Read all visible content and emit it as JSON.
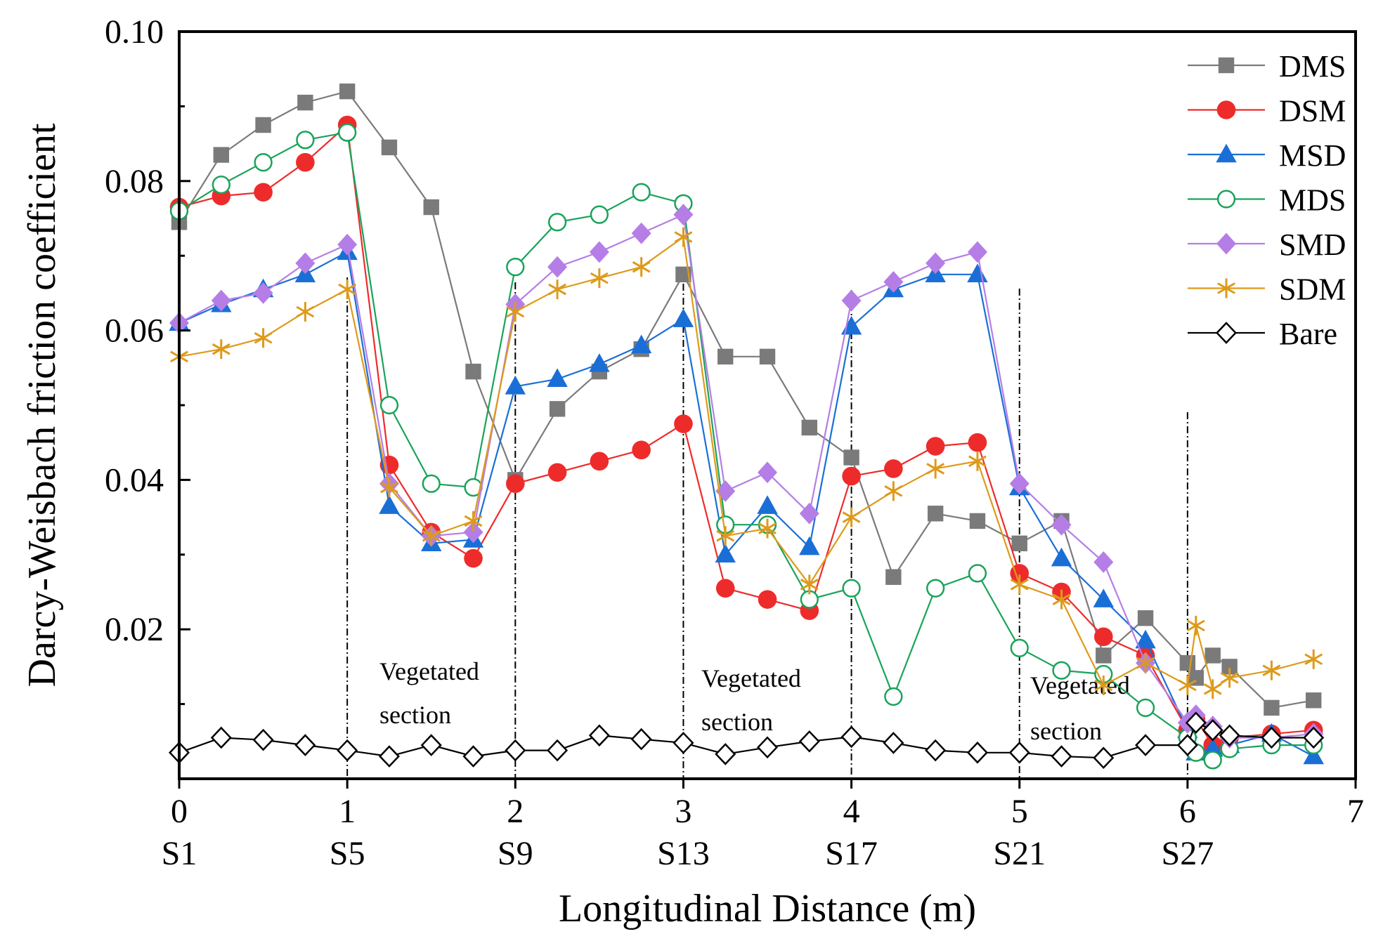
{
  "chart_data": {
    "type": "line",
    "xlabel": "Longitudinal Distance (m)",
    "ylabel": "Darcy-Weisbach friction coefficient",
    "xlim": [
      0,
      7
    ],
    "ylim": [
      0,
      0.1
    ],
    "x_ticks": [
      "0",
      "1",
      "2",
      "3",
      "4",
      "5",
      "6",
      "7"
    ],
    "x_sublabels": [
      "S1",
      "S5",
      "S9",
      "S13",
      "S17",
      "S21",
      "S27"
    ],
    "y_ticks": [
      "0.02",
      "0.04",
      "0.06",
      "0.08",
      "0.10"
    ],
    "legend_position": "top-right",
    "section_dividers": [
      1,
      2,
      3,
      4,
      5,
      6
    ],
    "annotations": [
      {
        "line1": "Vegetated",
        "line2": "section",
        "x": 1.5
      },
      {
        "line1": "Vegetated",
        "line2": "section",
        "x": 3.5
      },
      {
        "line1": "Vegetated",
        "line2": "section",
        "x": 5.5
      }
    ],
    "series": [
      {
        "name": "DMS",
        "color": "#7a7a7a",
        "marker": "square",
        "points": [
          [
            0,
            0.0745
          ],
          [
            0.25,
            0.0835
          ],
          [
            0.5,
            0.0875
          ],
          [
            0.75,
            0.0905
          ],
          [
            1,
            0.092
          ],
          [
            1.25,
            0.0845
          ],
          [
            1.5,
            0.0765
          ],
          [
            1.75,
            0.0545
          ],
          [
            2,
            0.04
          ],
          [
            2.25,
            0.0495
          ],
          [
            2.5,
            0.0545
          ],
          [
            2.75,
            0.0575
          ],
          [
            3,
            0.0675
          ],
          [
            3.25,
            0.0565
          ],
          [
            3.5,
            0.0565
          ],
          [
            3.75,
            0.047
          ],
          [
            4,
            0.043
          ],
          [
            4.25,
            0.027
          ],
          [
            4.5,
            0.0355
          ],
          [
            4.75,
            0.0345
          ],
          [
            5,
            0.0315
          ],
          [
            5.25,
            0.0345
          ],
          [
            5.5,
            0.0165
          ],
          [
            5.75,
            0.0215
          ],
          [
            6,
            0.0155
          ],
          [
            6.05,
            0.0135
          ],
          [
            6.15,
            0.0165
          ],
          [
            6.25,
            0.015
          ],
          [
            6.5,
            0.0095
          ],
          [
            6.75,
            0.0105
          ]
        ]
      },
      {
        "name": "DSM",
        "color": "#ee2b2b",
        "marker": "circle-filled",
        "points": [
          [
            0,
            0.0765
          ],
          [
            0.25,
            0.078
          ],
          [
            0.5,
            0.0785
          ],
          [
            0.75,
            0.0825
          ],
          [
            1,
            0.0875
          ],
          [
            1.25,
            0.042
          ],
          [
            1.5,
            0.033
          ],
          [
            1.75,
            0.0295
          ],
          [
            2,
            0.0395
          ],
          [
            2.25,
            0.041
          ],
          [
            2.5,
            0.0425
          ],
          [
            2.75,
            0.044
          ],
          [
            3,
            0.0475
          ],
          [
            3.25,
            0.0255
          ],
          [
            3.5,
            0.024
          ],
          [
            3.75,
            0.0225
          ],
          [
            4,
            0.0405
          ],
          [
            4.25,
            0.0415
          ],
          [
            4.5,
            0.0445
          ],
          [
            4.75,
            0.045
          ],
          [
            5,
            0.0275
          ],
          [
            5.25,
            0.025
          ],
          [
            5.5,
            0.019
          ],
          [
            5.75,
            0.0165
          ],
          [
            6,
            0.0065
          ],
          [
            6.05,
            0.008
          ],
          [
            6.15,
            0.0045
          ],
          [
            6.25,
            0.0055
          ],
          [
            6.5,
            0.006
          ],
          [
            6.75,
            0.0065
          ]
        ]
      },
      {
        "name": "MSD",
        "color": "#1a6fd6",
        "marker": "triangle",
        "points": [
          [
            0,
            0.061
          ],
          [
            0.25,
            0.0635
          ],
          [
            0.5,
            0.0655
          ],
          [
            0.75,
            0.0675
          ],
          [
            1,
            0.0705
          ],
          [
            1.25,
            0.0365
          ],
          [
            1.5,
            0.0315
          ],
          [
            1.75,
            0.032
          ],
          [
            2,
            0.0525
          ],
          [
            2.25,
            0.0535
          ],
          [
            2.5,
            0.0555
          ],
          [
            2.75,
            0.058
          ],
          [
            3,
            0.0615
          ],
          [
            3.25,
            0.03
          ],
          [
            3.5,
            0.0365
          ],
          [
            3.75,
            0.031
          ],
          [
            4,
            0.0605
          ],
          [
            4.25,
            0.0655
          ],
          [
            4.5,
            0.0675
          ],
          [
            4.75,
            0.0675
          ],
          [
            5,
            0.039
          ],
          [
            5.25,
            0.0295
          ],
          [
            5.5,
            0.024
          ],
          [
            5.75,
            0.0185
          ],
          [
            6,
            0.0065
          ],
          [
            6.05,
            0.0035
          ],
          [
            6.15,
            0.004
          ],
          [
            6.25,
            0.0045
          ],
          [
            6.5,
            0.006
          ],
          [
            6.75,
            0.003
          ]
        ]
      },
      {
        "name": "MDS",
        "color": "#1aa35a",
        "marker": "circle-open",
        "points": [
          [
            0,
            0.076
          ],
          [
            0.25,
            0.0795
          ],
          [
            0.5,
            0.0825
          ],
          [
            0.75,
            0.0855
          ],
          [
            1,
            0.0865
          ],
          [
            1.25,
            0.05
          ],
          [
            1.5,
            0.0395
          ],
          [
            1.75,
            0.039
          ],
          [
            2,
            0.0685
          ],
          [
            2.25,
            0.0745
          ],
          [
            2.5,
            0.0755
          ],
          [
            2.75,
            0.0785
          ],
          [
            3,
            0.077
          ],
          [
            3.25,
            0.034
          ],
          [
            3.5,
            0.034
          ],
          [
            3.75,
            0.024
          ],
          [
            4,
            0.0255
          ],
          [
            4.25,
            0.011
          ],
          [
            4.5,
            0.0255
          ],
          [
            4.75,
            0.0275
          ],
          [
            5,
            0.0175
          ],
          [
            5.25,
            0.0145
          ],
          [
            5.5,
            0.014
          ],
          [
            5.75,
            0.0095
          ],
          [
            6,
            0.0055
          ],
          [
            6.05,
            0.0035
          ],
          [
            6.15,
            0.0025
          ],
          [
            6.25,
            0.004
          ],
          [
            6.5,
            0.0045
          ],
          [
            6.75,
            0.0045
          ]
        ]
      },
      {
        "name": "SMD",
        "color": "#b57ee6",
        "marker": "diamond-filled",
        "points": [
          [
            0,
            0.061
          ],
          [
            0.25,
            0.064
          ],
          [
            0.5,
            0.065
          ],
          [
            0.75,
            0.069
          ],
          [
            1,
            0.0715
          ],
          [
            1.25,
            0.0395
          ],
          [
            1.5,
            0.0325
          ],
          [
            1.75,
            0.033
          ],
          [
            2,
            0.0635
          ],
          [
            2.25,
            0.0685
          ],
          [
            2.5,
            0.0705
          ],
          [
            2.75,
            0.073
          ],
          [
            3,
            0.0755
          ],
          [
            3.25,
            0.0385
          ],
          [
            3.5,
            0.041
          ],
          [
            3.75,
            0.0355
          ],
          [
            4,
            0.064
          ],
          [
            4.25,
            0.0665
          ],
          [
            4.5,
            0.069
          ],
          [
            4.75,
            0.0705
          ],
          [
            5,
            0.0395
          ],
          [
            5.25,
            0.034
          ],
          [
            5.5,
            0.029
          ],
          [
            5.75,
            0.0155
          ],
          [
            6,
            0.0075
          ],
          [
            6.05,
            0.0085
          ],
          [
            6.15,
            0.007
          ],
          [
            6.25,
            0.0055
          ],
          [
            6.5,
            0.0055
          ],
          [
            6.75,
            0.006
          ]
        ]
      },
      {
        "name": "SDM",
        "color": "#dd9a1a",
        "marker": "asterisk",
        "points": [
          [
            0,
            0.0565
          ],
          [
            0.25,
            0.0575
          ],
          [
            0.5,
            0.059
          ],
          [
            0.75,
            0.0625
          ],
          [
            1,
            0.0655
          ],
          [
            1.25,
            0.039
          ],
          [
            1.5,
            0.0325
          ],
          [
            1.75,
            0.0345
          ],
          [
            2,
            0.0625
          ],
          [
            2.25,
            0.0655
          ],
          [
            2.5,
            0.067
          ],
          [
            2.75,
            0.0685
          ],
          [
            3,
            0.0725
          ],
          [
            3.25,
            0.0325
          ],
          [
            3.5,
            0.0335
          ],
          [
            3.75,
            0.026
          ],
          [
            4,
            0.035
          ],
          [
            4.25,
            0.0385
          ],
          [
            4.5,
            0.0415
          ],
          [
            4.75,
            0.0425
          ],
          [
            5,
            0.026
          ],
          [
            5.25,
            0.024
          ],
          [
            5.5,
            0.0125
          ],
          [
            5.75,
            0.0155
          ],
          [
            6,
            0.0125
          ],
          [
            6.05,
            0.0205
          ],
          [
            6.15,
            0.012
          ],
          [
            6.25,
            0.0135
          ],
          [
            6.5,
            0.0145
          ],
          [
            6.75,
            0.016
          ]
        ]
      },
      {
        "name": "Bare",
        "color": "#000000",
        "marker": "diamond-open",
        "points": [
          [
            0,
            0.0035
          ],
          [
            0.25,
            0.0055
          ],
          [
            0.5,
            0.0052
          ],
          [
            0.75,
            0.0045
          ],
          [
            1,
            0.0038
          ],
          [
            1.25,
            0.003
          ],
          [
            1.5,
            0.0045
          ],
          [
            1.75,
            0.003
          ],
          [
            2,
            0.0038
          ],
          [
            2.25,
            0.0038
          ],
          [
            2.5,
            0.0058
          ],
          [
            2.75,
            0.0053
          ],
          [
            3,
            0.0048
          ],
          [
            3.25,
            0.0033
          ],
          [
            3.5,
            0.0042
          ],
          [
            3.75,
            0.005
          ],
          [
            4,
            0.0056
          ],
          [
            4.25,
            0.0048
          ],
          [
            4.5,
            0.0038
          ],
          [
            4.75,
            0.0035
          ],
          [
            5,
            0.0035
          ],
          [
            5.25,
            0.003
          ],
          [
            5.5,
            0.0028
          ],
          [
            5.75,
            0.0045
          ],
          [
            6,
            0.0045
          ],
          [
            6.05,
            0.0075
          ],
          [
            6.15,
            0.0065
          ],
          [
            6.25,
            0.0058
          ],
          [
            6.5,
            0.0055
          ],
          [
            6.75,
            0.0055
          ]
        ]
      }
    ]
  }
}
